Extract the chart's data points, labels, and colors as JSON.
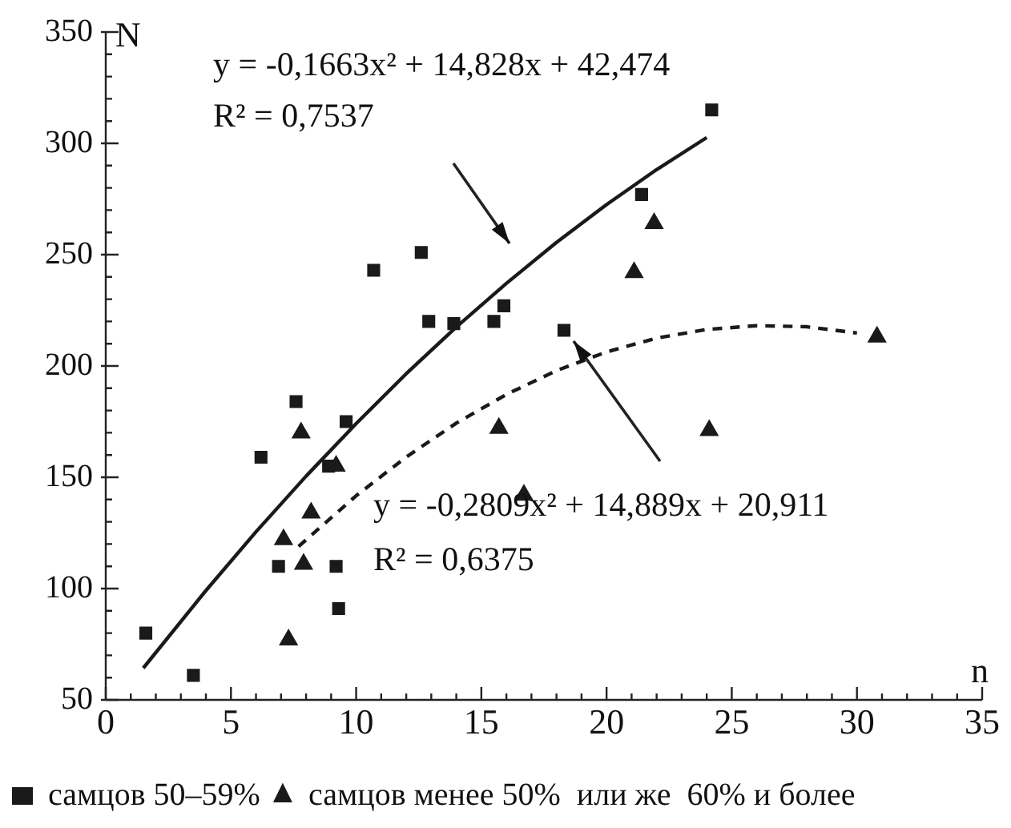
{
  "chart_data": {
    "type": "scatter",
    "xlabel": "n",
    "ylabel": "N",
    "xlim": [
      0,
      35
    ],
    "ylim": [
      50,
      350
    ],
    "xticks": [
      0,
      5,
      10,
      15,
      20,
      25,
      30,
      35
    ],
    "yticks": [
      50,
      100,
      150,
      200,
      250,
      300,
      350
    ],
    "grid": false,
    "legend": "bottom",
    "annotations": [
      "y = -0,1663x² + 14,828x + 42,474",
      "R² = 0,7537",
      "y = -0,2809x² + 14,889x + 20,911",
      "R² = 0,6375"
    ],
    "series": [
      {
        "name": "самцов 50–59%",
        "type": "scatter",
        "marker": "square",
        "color": "#1a1a1a",
        "x": [
          1.6,
          3.5,
          6.2,
          7.6,
          6.9,
          8.9,
          9.2,
          9.3,
          9.6,
          10.7,
          12.6,
          12.9,
          13.9,
          15.5,
          15.9,
          18.3,
          21.4,
          24.2
        ],
        "values": [
          80,
          61,
          159,
          184,
          110,
          155,
          110,
          91,
          175,
          243,
          251,
          220,
          219,
          220,
          227,
          216,
          277,
          315
        ]
      },
      {
        "name": "самцов менее 50%  или же  60% и более",
        "type": "scatter",
        "marker": "triangle",
        "color": "#1a1a1a",
        "x": [
          7.8,
          9.2,
          8.2,
          7.1,
          7.9,
          7.3,
          15.7,
          16.7,
          21.9,
          21.1,
          24.1,
          30.8
        ],
        "values": [
          170,
          155,
          134,
          122,
          111,
          77,
          172,
          142,
          264,
          242,
          171,
          213
        ]
      },
      {
        "type": "line",
        "marker": "none",
        "line_style": "solid",
        "color": "#1a1a1a",
        "x": [
          1.5,
          4,
          6,
          8,
          10,
          12,
          14,
          16,
          18,
          20,
          22,
          24
        ],
        "values": [
          64.3,
          99.1,
          125.5,
          150.5,
          174.1,
          196.5,
          217.5,
          237.1,
          255.5,
          272.5,
          288.2,
          302.6
        ]
      },
      {
        "type": "line",
        "marker": "none",
        "line_style": "dashed",
        "color": "#1a1a1a",
        "x": [
          7.7,
          10,
          12,
          14,
          16,
          18,
          20,
          22,
          24,
          26,
          28,
          30
        ],
        "values": [
          118.9,
          141.7,
          159.1,
          174.3,
          187.2,
          197.9,
          206.3,
          212.5,
          216.4,
          218.1,
          217.6,
          214.8
        ]
      }
    ]
  }
}
